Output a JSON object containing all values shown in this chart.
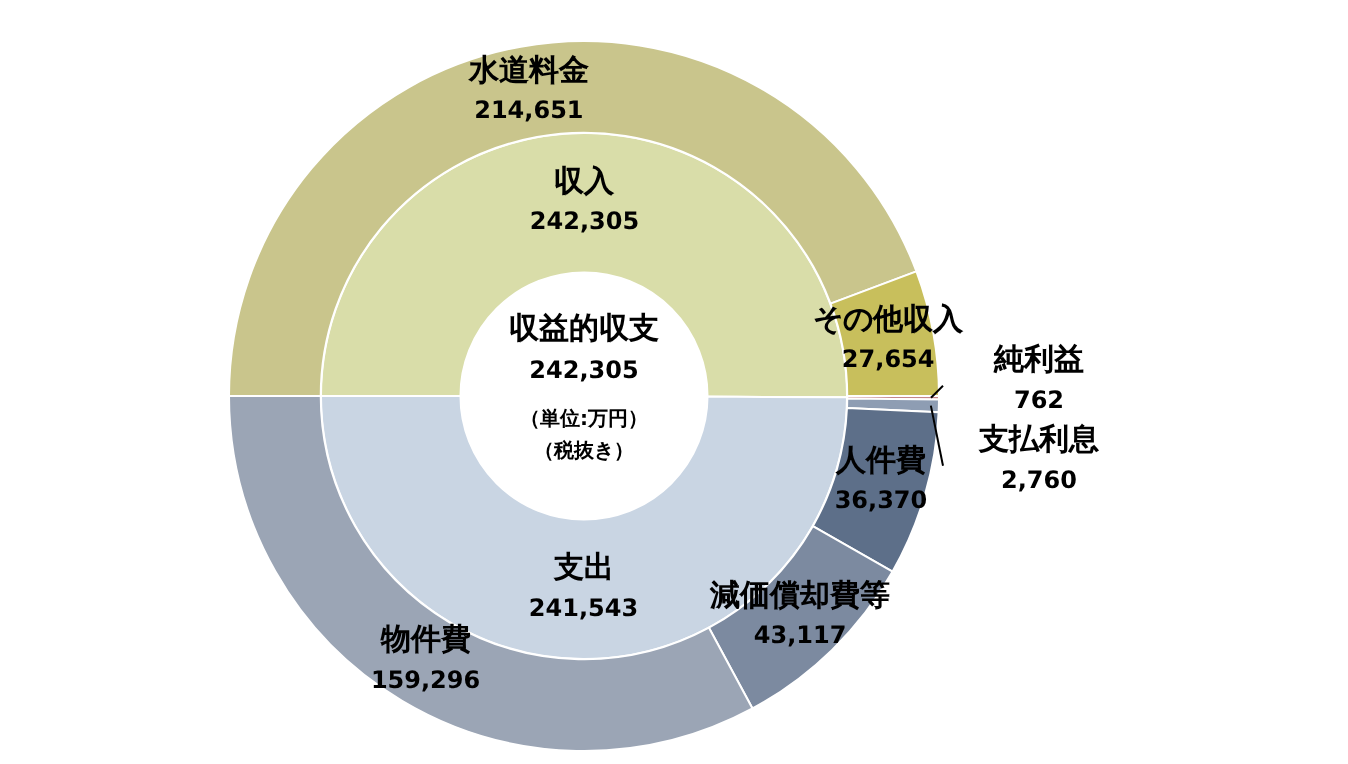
{
  "chart_data": [
    {
      "type": "donut",
      "legend": false,
      "data_labels": true,
      "categories": [
        "水道料金",
        "その他収入",
        "純利益",
        "支払利息",
        "人件費",
        "減価償却費等",
        "物件費"
      ],
      "values": [
        214651,
        27654,
        762,
        2760,
        36370,
        43117,
        159296
      ],
      "value_labels": [
        "214,651",
        "27,654",
        "762",
        "2,760",
        "36,370",
        "43,117",
        "159,296"
      ],
      "colors": [
        "#c9c58c",
        "#c8bf5c",
        "#c4868a",
        "#8e9db3",
        "#5d6f89",
        "#7c8aa0",
        "#9ba5b5"
      ]
    },
    {
      "type": "donut",
      "legend": false,
      "data_labels": true,
      "categories": [
        "収入",
        "支出"
      ],
      "values": [
        242305,
        241543
      ],
      "value_labels": [
        "242,305",
        "241,543"
      ],
      "colors": [
        "#d9dda9",
        "#c9d5e3"
      ],
      "annotations": [
        "収益的収支",
        "242,305",
        "（単位:万円）",
        "（税抜き）"
      ]
    }
  ]
}
